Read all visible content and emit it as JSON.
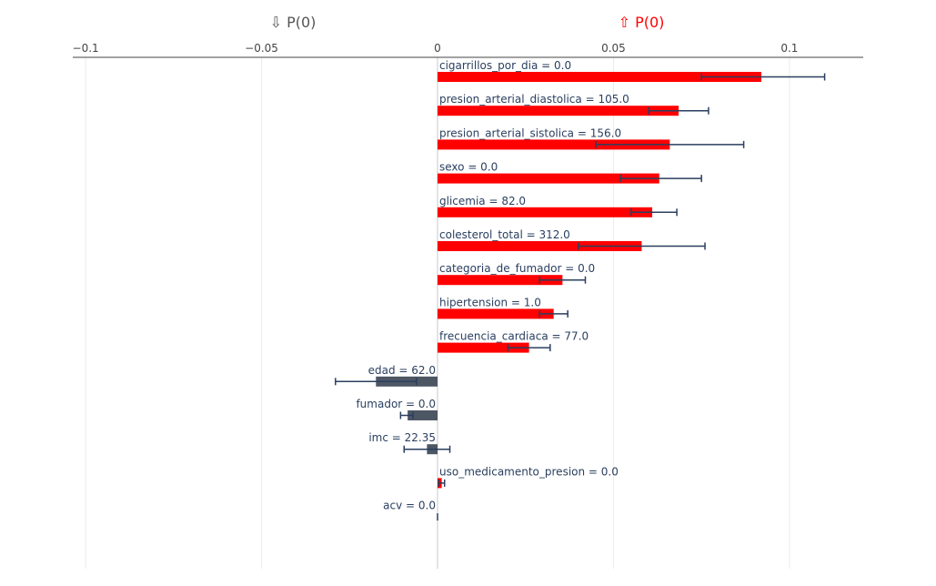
{
  "header": {
    "neg_label": "⇩ P(0)",
    "pos_label": "⇧ P(0)",
    "neg_color": "#555555",
    "pos_color": "#ff0000"
  },
  "chart_data": {
    "type": "bar",
    "orientation": "horizontal",
    "xlim": [
      -0.1,
      0.12
    ],
    "xticks": [
      -0.1,
      -0.05,
      0,
      0.05,
      0.1
    ],
    "xtick_labels": [
      "−0.1",
      "−0.05",
      "0",
      "0.05",
      "0.1"
    ],
    "grid": true,
    "positive_color": "#ff0000",
    "negative_color": "#4d5663",
    "error_bar_color": "#2a3f5f",
    "bars": [
      {
        "label": "cigarrillos_por_dia = 0.0",
        "value": 0.092,
        "err_low": 0.075,
        "err_high": 0.11
      },
      {
        "label": "presion_arterial_diastolica = 105.0",
        "value": 0.0685,
        "err_low": 0.06,
        "err_high": 0.077
      },
      {
        "label": "presion_arterial_sistolica = 156.0",
        "value": 0.066,
        "err_low": 0.045,
        "err_high": 0.087
      },
      {
        "label": "sexo = 0.0",
        "value": 0.063,
        "err_low": 0.052,
        "err_high": 0.075
      },
      {
        "label": "glicemia = 82.0",
        "value": 0.061,
        "err_low": 0.055,
        "err_high": 0.068
      },
      {
        "label": "colesterol_total = 312.0",
        "value": 0.058,
        "err_low": 0.04,
        "err_high": 0.076
      },
      {
        "label": "categoria_de_fumador = 0.0",
        "value": 0.0355,
        "err_low": 0.029,
        "err_high": 0.042
      },
      {
        "label": "hipertension = 1.0",
        "value": 0.033,
        "err_low": 0.029,
        "err_high": 0.037
      },
      {
        "label": "frecuencia_cardiaca = 77.0",
        "value": 0.026,
        "err_low": 0.02,
        "err_high": 0.032
      },
      {
        "label": "edad = 62.0",
        "value": -0.0175,
        "err_low": -0.029,
        "err_high": -0.006
      },
      {
        "label": "fumador = 0.0",
        "value": -0.0085,
        "err_low": -0.0105,
        "err_high": -0.007
      },
      {
        "label": "imc = 22.35",
        "value": -0.003,
        "err_low": -0.0095,
        "err_high": 0.0035
      },
      {
        "label": "uso_medicamento_presion = 0.0",
        "value": 0.0012,
        "err_low": 0.0003,
        "err_high": 0.002
      },
      {
        "label": "acv = 0.0",
        "value": 0.0,
        "err_low": 0.0,
        "err_high": 0.0
      }
    ]
  }
}
